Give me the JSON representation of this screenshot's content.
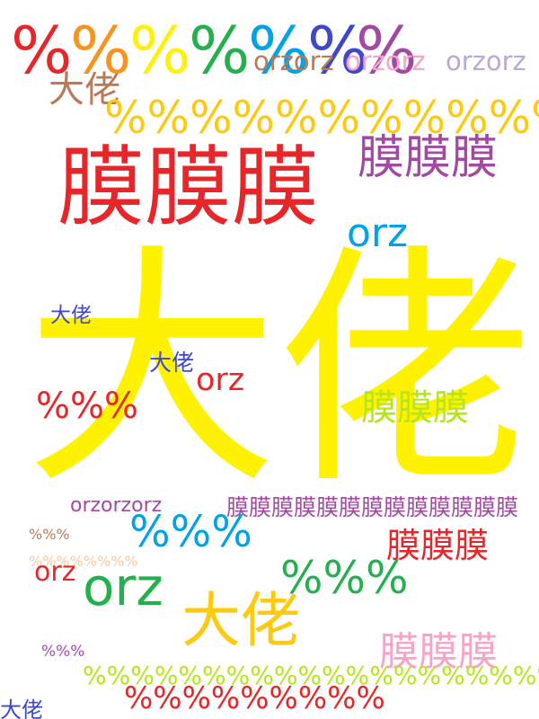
{
  "colors": {
    "red": "#e8262a",
    "orange": "#f7941d",
    "yellow": "#fff200",
    "green": "#23b14d",
    "cyan": "#00a2e8",
    "indigo": "#3f48cc",
    "purple": "#a349a4",
    "pink": "#f9a3c8",
    "lavender": "#b8a9d9",
    "brown": "#b97a57",
    "gold": "#ffc90e",
    "lime": "#b5e61d"
  },
  "words": {
    "w01": "大佬",
    "w02": "膜膜膜",
    "w03": "膜膜膜",
    "w04": "orz",
    "w05": "%",
    "w06": "%",
    "w07": "%",
    "w08": "%",
    "w09": "%",
    "w10": "%",
    "w11": "%",
    "w12": "orzorz",
    "w13": "orzorz",
    "w14": "orzorz",
    "w15": "大佬",
    "w16": "%%%%%%%%%%%",
    "w17": "大佬",
    "w18": "大佬",
    "w19": "orz",
    "w20": "%%%",
    "w21": "膜膜膜",
    "w22": "orzorzorz",
    "w23": "膜膜膜膜膜膜膜膜膜膜膜膜膜",
    "w24": "%%%",
    "w25": "%%%",
    "w26": "%%%%%%%%",
    "w27": "膜膜膜",
    "w28": "orz",
    "w29": "orz",
    "w30": "%%%",
    "w31": "大佬",
    "w32": "%%%",
    "w33": "膜膜膜",
    "w34": "%%%%%%%%%%%%%%%%%%%%%%%%%%%%%%%%%",
    "w35": "%%%%%%%%%",
    "w36": "大佬"
  }
}
